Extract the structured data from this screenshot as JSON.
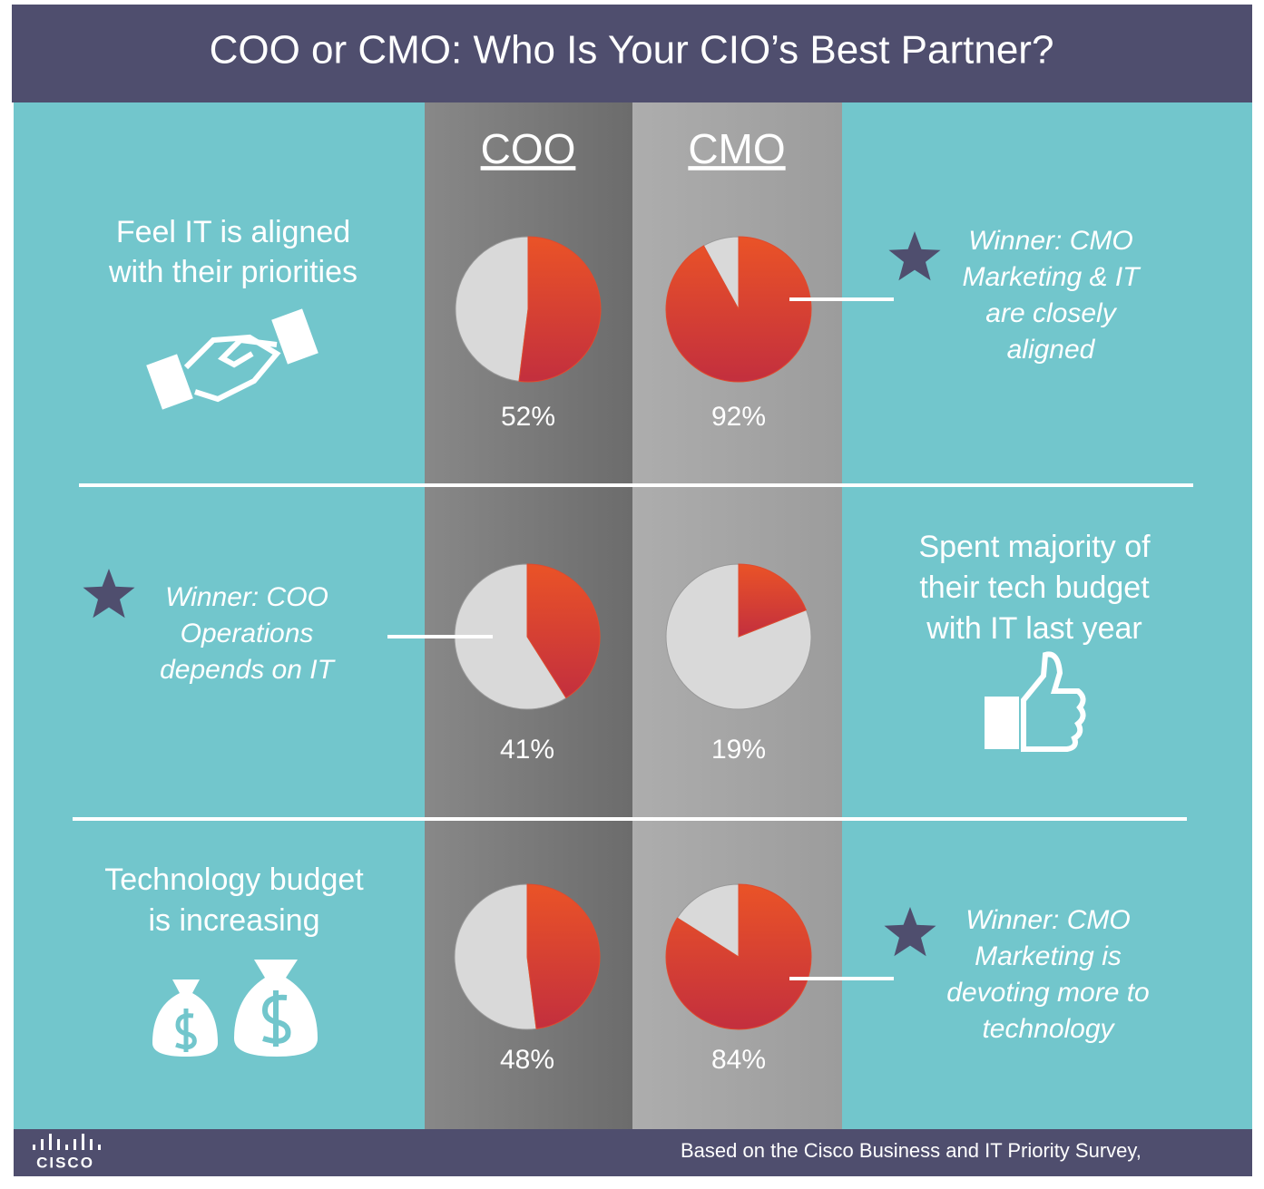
{
  "header": {
    "title": "COO or CMO: Who Is Your CIO’s Best Partner?"
  },
  "columns": [
    "COO",
    "CMO"
  ],
  "colors": {
    "share": "#e04a2e",
    "rest": "#d9d9d9"
  },
  "rows": [
    {
      "statement": [
        "Feel IT is aligned",
        "with their priorities"
      ],
      "values": [
        52,
        92
      ],
      "value_labels": [
        "52%",
        "92%"
      ],
      "winner": [
        "Winner: CMO",
        "Marketing & IT",
        "are closely",
        "aligned"
      ]
    },
    {
      "statement": [
        "Spent majority of",
        "their tech budget",
        "with IT last year"
      ],
      "values": [
        41,
        19
      ],
      "value_labels": [
        "41%",
        "19%"
      ],
      "winner": [
        "Winner: COO",
        "Operations",
        "depends on IT"
      ]
    },
    {
      "statement": [
        "Technology budget",
        "is increasing"
      ],
      "values": [
        48,
        84
      ],
      "value_labels": [
        "48%",
        "84%"
      ],
      "winner": [
        "Winner: CMO",
        "Marketing is",
        "devoting more to",
        "technology"
      ]
    }
  ],
  "footer": {
    "source": "Based on the Cisco Business and IT Priority Survey,",
    "logo": "CISCO"
  }
}
